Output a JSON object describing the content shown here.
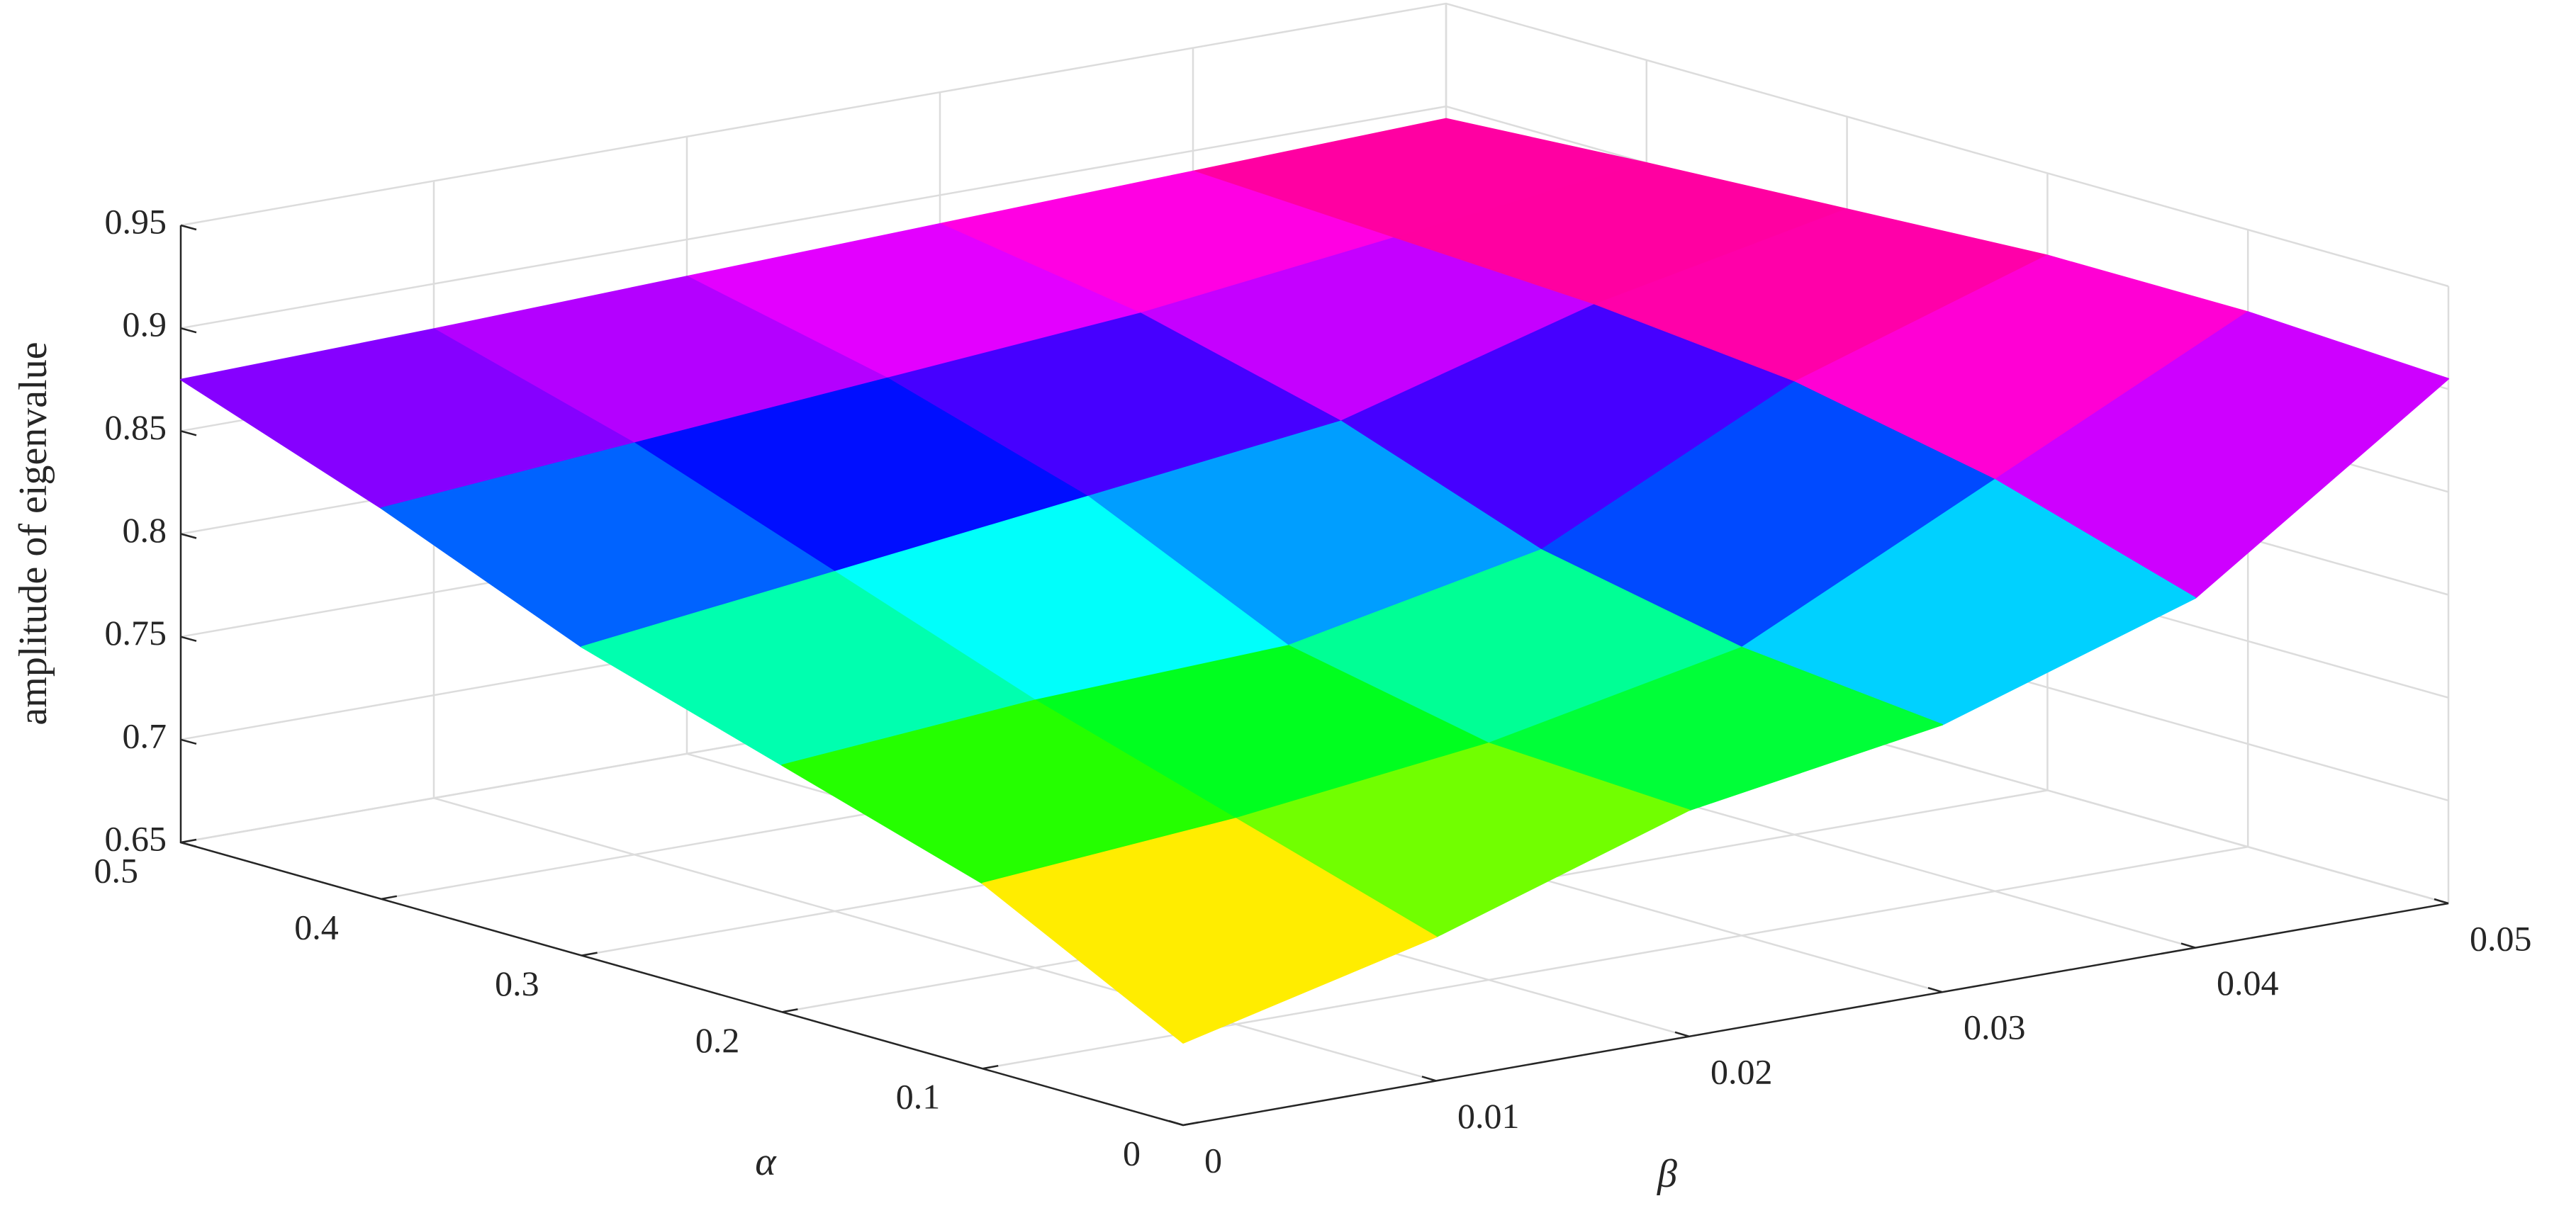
{
  "chart_data": {
    "type": "surface",
    "zlabel": "amplitude of eigenvalue",
    "xlabel": "β",
    "ylabel": "α",
    "x": [
      0,
      0.01,
      0.02,
      0.03,
      0.04,
      0.05
    ],
    "y": [
      0,
      0.1,
      0.2,
      0.3,
      0.4,
      0.5
    ],
    "z": [
      [
        0.69,
        0.72,
        0.76,
        0.78,
        0.82,
        0.905
      ],
      [
        0.74,
        0.75,
        0.765,
        0.79,
        0.85,
        0.91
      ],
      [
        0.77,
        0.78,
        0.785,
        0.81,
        0.87,
        0.91
      ],
      [
        0.8,
        0.815,
        0.83,
        0.845,
        0.88,
        0.905
      ],
      [
        0.84,
        0.85,
        0.86,
        0.87,
        0.885,
        0.9
      ],
      [
        0.875,
        0.878,
        0.882,
        0.886,
        0.89,
        0.894
      ]
    ],
    "xlim": [
      0,
      0.05
    ],
    "ylim": [
      0,
      0.5
    ],
    "zlim": [
      0.65,
      0.95
    ],
    "xticks": [
      0,
      0.01,
      0.02,
      0.03,
      0.04,
      0.05
    ],
    "yticks": [
      0,
      0.1,
      0.2,
      0.3,
      0.4,
      0.5
    ],
    "zticks": [
      0.65,
      0.7,
      0.75,
      0.8,
      0.85,
      0.9,
      0.95
    ],
    "colormap": "hsv",
    "grid": true
  }
}
